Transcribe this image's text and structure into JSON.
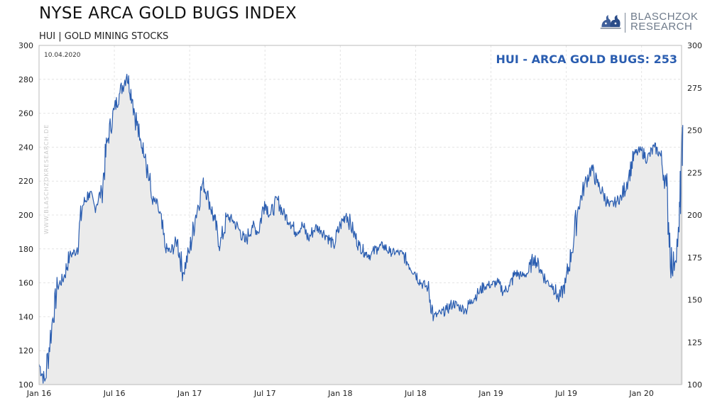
{
  "header": {
    "title": "NYSE ARCA GOLD BUGS INDEX",
    "subtitle": "HUI  |  GOLD MINING STOCKS"
  },
  "logo": {
    "line1": "BLASCHZOK",
    "line2": "RESEARCH",
    "icon": "bull-bear-icon"
  },
  "colors": {
    "line": "#2a5db0",
    "area": "#ebebeb",
    "grid": "#e4e4e4",
    "annotation": "#2a5db0"
  },
  "chart_data": {
    "type": "area",
    "title": "NYSE ARCA GOLD BUGS INDEX",
    "subtitle": "HUI  |  GOLD MINING STOCKS",
    "date": "10.04.2020",
    "annotation": "HUI - ARCA GOLD BUGS: 253",
    "watermark": "WWW.BLASCHZOKRESEARCH.DE",
    "x_ticks": [
      "Jan 16",
      "Jul 16",
      "Jan 17",
      "Jul 17",
      "Jan 18",
      "Jul 18",
      "Jan 19",
      "Jul 19",
      "Jan 20"
    ],
    "y_left": {
      "ticks": [
        100,
        120,
        140,
        160,
        180,
        200,
        220,
        240,
        260,
        280,
        300
      ],
      "lim": [
        100,
        300
      ]
    },
    "y_right": {
      "ticks": [
        100,
        125,
        150,
        175,
        200,
        225,
        250,
        275,
        300
      ],
      "lim": [
        100,
        300
      ]
    },
    "grid": true,
    "legend": "none",
    "series": [
      {
        "x": [
          "2016-01-01",
          "2016-01-15",
          "2016-02-01",
          "2016-02-15",
          "2016-03-01",
          "2016-03-15",
          "2016-04-01",
          "2016-04-15",
          "2016-05-01",
          "2016-05-15",
          "2016-06-01",
          "2016-06-15",
          "2016-07-01",
          "2016-07-15",
          "2016-08-01",
          "2016-08-15",
          "2016-09-01",
          "2016-09-15",
          "2016-10-01",
          "2016-10-15",
          "2016-11-01",
          "2016-11-15",
          "2016-12-01",
          "2016-12-15",
          "2017-01-01",
          "2017-01-15",
          "2017-02-01",
          "2017-02-15",
          "2017-03-01",
          "2017-03-15",
          "2017-04-01",
          "2017-04-15",
          "2017-05-01",
          "2017-05-15",
          "2017-06-01",
          "2017-06-15",
          "2017-07-01",
          "2017-07-15",
          "2017-08-01",
          "2017-08-15",
          "2017-09-01",
          "2017-09-15",
          "2017-10-01",
          "2017-10-15",
          "2017-11-01",
          "2017-11-15",
          "2017-12-01",
          "2017-12-15",
          "2018-01-01",
          "2018-01-15",
          "2018-02-01",
          "2018-02-15",
          "2018-03-01",
          "2018-03-15",
          "2018-04-01",
          "2018-04-15",
          "2018-05-01",
          "2018-05-15",
          "2018-06-01",
          "2018-06-15",
          "2018-07-01",
          "2018-07-15",
          "2018-08-01",
          "2018-08-15",
          "2018-09-01",
          "2018-09-15",
          "2018-10-01",
          "2018-10-15",
          "2018-11-01",
          "2018-11-15",
          "2018-12-01",
          "2018-12-15",
          "2019-01-01",
          "2019-01-15",
          "2019-02-01",
          "2019-02-15",
          "2019-03-01",
          "2019-03-15",
          "2019-04-01",
          "2019-04-15",
          "2019-05-01",
          "2019-05-15",
          "2019-06-01",
          "2019-06-15",
          "2019-07-01",
          "2019-07-15",
          "2019-08-01",
          "2019-08-15",
          "2019-09-01",
          "2019-09-15",
          "2019-10-01",
          "2019-10-15",
          "2019-11-01",
          "2019-11-15",
          "2019-12-01",
          "2019-12-15",
          "2020-01-01",
          "2020-01-15",
          "2020-02-01",
          "2020-02-15",
          "2020-03-01",
          "2020-03-15",
          "2020-04-01",
          "2020-04-10"
        ],
        "values": [
          112,
          102,
          135,
          158,
          163,
          176,
          179,
          205,
          213,
          205,
          214,
          244,
          262,
          272,
          283,
          268,
          244,
          236,
          209,
          206,
          181,
          178,
          185,
          166,
          180,
          200,
          219,
          210,
          197,
          182,
          199,
          197,
          191,
          184,
          194,
          190,
          208,
          200,
          209,
          201,
          196,
          190,
          194,
          186,
          193,
          191,
          187,
          182,
          194,
          201,
          190,
          182,
          178,
          176,
          181,
          182,
          178,
          178,
          177,
          171,
          166,
          160,
          157,
          140,
          142,
          144,
          148,
          146,
          144,
          150,
          154,
          158,
          159,
          160,
          155,
          158,
          166,
          164,
          166,
          175,
          168,
          161,
          158,
          150,
          160,
          178,
          205,
          217,
          228,
          219,
          212,
          205,
          208,
          211,
          223,
          236,
          238,
          233,
          240,
          236,
          217,
          166,
          190,
          253
        ]
      }
    ]
  }
}
